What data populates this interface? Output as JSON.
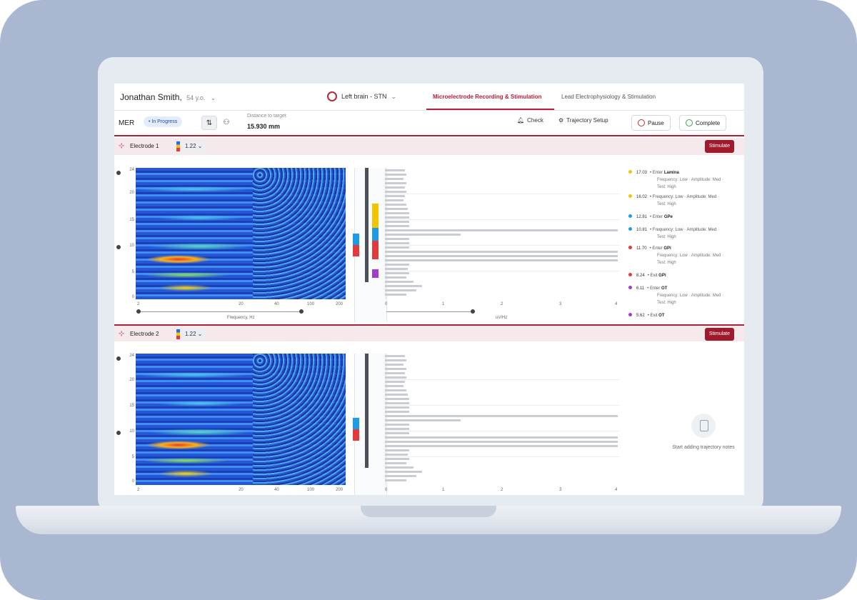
{
  "header": {
    "patient_name": "Jonathan Smith,",
    "patient_age": "54 y.o.",
    "target": "Left brain - STN",
    "tabs": [
      {
        "label": "Microelectrode Recording & Stimulation",
        "active": true
      },
      {
        "label": "Lead Electrophysiology & Stimulation",
        "active": false
      }
    ]
  },
  "toolbar": {
    "mode": "MER",
    "status": "• In Progress",
    "distance_label": "Distance to target",
    "distance_value": "15.930 mm",
    "check_label": "Check",
    "trajectory_label": "Trajectory Setup",
    "pause_label": "Pause",
    "complete_label": "Complete"
  },
  "electrodes": [
    {
      "name": "Electrode 1",
      "gain": "1.22",
      "stimulate_label": "Stimulate",
      "freq_axis_label": "Frequency, Hz",
      "freq_ticks": [
        "2",
        "20",
        "40",
        "100",
        "200"
      ],
      "depth_ticks": [
        "24",
        "20",
        "15",
        "10",
        "5",
        "0"
      ],
      "hist_ticks": [
        "0",
        "1",
        "2",
        "3",
        "4"
      ],
      "hist_axis_label": "uV/Hz",
      "notes": [
        {
          "value": "17.03",
          "color": "#f4c400",
          "text": "Enter",
          "target": "Lamina",
          "detail": "Frequency: Low · Amplitude: Med ·",
          "extra": "Test: High"
        },
        {
          "value": "16.02",
          "color": "#f4c400",
          "text": "Frequency: Low · Amplitude: Med ·",
          "target": "",
          "detail": "Test: High",
          "extra": ""
        },
        {
          "value": "12.81",
          "color": "#1e9be8",
          "text": "Enter",
          "target": "GPe",
          "detail": "",
          "extra": ""
        },
        {
          "value": "10.81",
          "color": "#1e9be8",
          "text": "Frequency: Low · Amplitude: Med ·",
          "target": "",
          "detail": "Test: High",
          "extra": ""
        },
        {
          "value": "11.70",
          "color": "#e23b3b",
          "text": "Enter",
          "target": "GPi",
          "detail": "Frequency: Low · Amplitude: Med ·",
          "extra": "Test: High"
        },
        {
          "value": "8.24",
          "color": "#e23b3b",
          "text": "Exit",
          "target": "GPi",
          "detail": "",
          "extra": ""
        },
        {
          "value": "6.11",
          "color": "#a23bcf",
          "text": "Enter",
          "target": "OT",
          "detail": "Frequency: Low · Amplitude: Med ·",
          "extra": "Test: High"
        },
        {
          "value": "5.62",
          "color": "#a23bcf",
          "text": "Exit",
          "target": "OT",
          "detail": "",
          "extra": ""
        }
      ]
    },
    {
      "name": "Electrode 2",
      "gain": "1.22",
      "stimulate_label": "Stimulate",
      "freq_ticks": [
        "2",
        "20",
        "40",
        "100",
        "200"
      ],
      "depth_ticks": [
        "24",
        "20",
        "15",
        "10",
        "5",
        "0"
      ],
      "hist_ticks": [
        "0",
        "1",
        "2",
        "3",
        "4"
      ],
      "empty_notes_text": "Start adding trajectory notes"
    }
  ],
  "colors": {
    "accent": "#b02136",
    "region_yellow": "#f4c400",
    "region_blue": "#1e9be8",
    "region_red": "#e23b3b",
    "region_purple": "#a23bcf"
  }
}
